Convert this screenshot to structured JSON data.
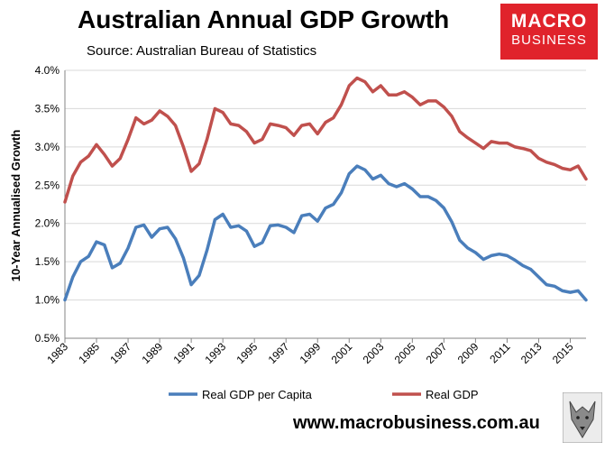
{
  "header": {
    "title": "Australian Annual GDP Growth",
    "subtitle": "Source: Australian Bureau of Statistics"
  },
  "logo": {
    "line1": "MACRO",
    "line2": "BUSINESS"
  },
  "footer": {
    "website": "www.macrobusiness.com.au"
  },
  "chart_data": {
    "type": "line",
    "title": "Australian Annual GDP Growth",
    "subtitle": "Source: Australian Bureau of Statistics",
    "xlabel": "",
    "ylabel": "10-Year Annualised Growth",
    "xlim": [
      1983,
      2016
    ],
    "ylim": [
      0.5,
      4.0
    ],
    "x_ticks": [
      "1983",
      "1985",
      "1987",
      "1989",
      "1991",
      "1993",
      "1995",
      "1997",
      "1999",
      "2001",
      "2003",
      "2005",
      "2007",
      "2009",
      "2011",
      "2013",
      "2015"
    ],
    "y_ticks": [
      "0.5%",
      "1.0%",
      "1.5%",
      "2.0%",
      "2.5%",
      "3.0%",
      "3.5%",
      "4.0%"
    ],
    "grid": "horizontal",
    "legend": "bottom",
    "series": [
      {
        "name": "Real GDP per Capita",
        "color": "#4a7ebb",
        "points": [
          [
            1983,
            1.0
          ],
          [
            1983.5,
            1.3
          ],
          [
            1984,
            1.5
          ],
          [
            1984.5,
            1.57
          ],
          [
            1985,
            1.76
          ],
          [
            1985.5,
            1.72
          ],
          [
            1986,
            1.42
          ],
          [
            1986.5,
            1.48
          ],
          [
            1987,
            1.68
          ],
          [
            1987.5,
            1.95
          ],
          [
            1988,
            1.98
          ],
          [
            1988.5,
            1.82
          ],
          [
            1989,
            1.93
          ],
          [
            1989.5,
            1.95
          ],
          [
            1990,
            1.8
          ],
          [
            1990.5,
            1.55
          ],
          [
            1991,
            1.2
          ],
          [
            1991.5,
            1.32
          ],
          [
            1992,
            1.65
          ],
          [
            1992.5,
            2.05
          ],
          [
            1993,
            2.12
          ],
          [
            1993.5,
            1.95
          ],
          [
            1994,
            1.97
          ],
          [
            1994.5,
            1.9
          ],
          [
            1995,
            1.7
          ],
          [
            1995.5,
            1.75
          ],
          [
            1996,
            1.97
          ],
          [
            1996.5,
            1.98
          ],
          [
            1997,
            1.95
          ],
          [
            1997.5,
            1.88
          ],
          [
            1998,
            2.1
          ],
          [
            1998.5,
            2.12
          ],
          [
            1999,
            2.03
          ],
          [
            1999.5,
            2.2
          ],
          [
            2000,
            2.25
          ],
          [
            2000.5,
            2.4
          ],
          [
            2001,
            2.65
          ],
          [
            2001.5,
            2.75
          ],
          [
            2002,
            2.7
          ],
          [
            2002.5,
            2.58
          ],
          [
            2003,
            2.63
          ],
          [
            2003.5,
            2.52
          ],
          [
            2004,
            2.48
          ],
          [
            2004.5,
            2.52
          ],
          [
            2005,
            2.45
          ],
          [
            2005.5,
            2.35
          ],
          [
            2006,
            2.35
          ],
          [
            2006.5,
            2.3
          ],
          [
            2007,
            2.2
          ],
          [
            2007.5,
            2.02
          ],
          [
            2008,
            1.78
          ],
          [
            2008.5,
            1.68
          ],
          [
            2009,
            1.62
          ],
          [
            2009.5,
            1.53
          ],
          [
            2010,
            1.58
          ],
          [
            2010.5,
            1.6
          ],
          [
            2011,
            1.58
          ],
          [
            2011.5,
            1.52
          ],
          [
            2012,
            1.45
          ],
          [
            2012.5,
            1.4
          ],
          [
            2013,
            1.3
          ],
          [
            2013.5,
            1.2
          ],
          [
            2014,
            1.18
          ],
          [
            2014.5,
            1.12
          ],
          [
            2015,
            1.1
          ],
          [
            2015.5,
            1.12
          ],
          [
            2016,
            1.0
          ]
        ]
      },
      {
        "name": "Real GDP",
        "color": "#c0504d",
        "points": [
          [
            1983,
            2.28
          ],
          [
            1983.5,
            2.62
          ],
          [
            1984,
            2.8
          ],
          [
            1984.5,
            2.88
          ],
          [
            1985,
            3.03
          ],
          [
            1985.5,
            2.9
          ],
          [
            1986,
            2.75
          ],
          [
            1986.5,
            2.85
          ],
          [
            1987,
            3.1
          ],
          [
            1987.5,
            3.38
          ],
          [
            1988,
            3.3
          ],
          [
            1988.5,
            3.35
          ],
          [
            1989,
            3.47
          ],
          [
            1989.5,
            3.4
          ],
          [
            1990,
            3.28
          ],
          [
            1990.5,
            3.0
          ],
          [
            1991,
            2.68
          ],
          [
            1991.5,
            2.78
          ],
          [
            1992,
            3.1
          ],
          [
            1992.5,
            3.5
          ],
          [
            1993,
            3.45
          ],
          [
            1993.5,
            3.3
          ],
          [
            1994,
            3.28
          ],
          [
            1994.5,
            3.2
          ],
          [
            1995,
            3.05
          ],
          [
            1995.5,
            3.1
          ],
          [
            1996,
            3.3
          ],
          [
            1996.5,
            3.28
          ],
          [
            1997,
            3.25
          ],
          [
            1997.5,
            3.15
          ],
          [
            1998,
            3.28
          ],
          [
            1998.5,
            3.3
          ],
          [
            1999,
            3.17
          ],
          [
            1999.5,
            3.32
          ],
          [
            2000,
            3.38
          ],
          [
            2000.5,
            3.55
          ],
          [
            2001,
            3.8
          ],
          [
            2001.5,
            3.9
          ],
          [
            2002,
            3.85
          ],
          [
            2002.5,
            3.72
          ],
          [
            2003,
            3.8
          ],
          [
            2003.5,
            3.68
          ],
          [
            2004,
            3.68
          ],
          [
            2004.5,
            3.72
          ],
          [
            2005,
            3.65
          ],
          [
            2005.5,
            3.55
          ],
          [
            2006,
            3.6
          ],
          [
            2006.5,
            3.6
          ],
          [
            2007,
            3.52
          ],
          [
            2007.5,
            3.4
          ],
          [
            2008,
            3.2
          ],
          [
            2008.5,
            3.12
          ],
          [
            2009,
            3.05
          ],
          [
            2009.5,
            2.98
          ],
          [
            2010,
            3.07
          ],
          [
            2010.5,
            3.05
          ],
          [
            2011,
            3.05
          ],
          [
            2011.5,
            3.0
          ],
          [
            2012,
            2.98
          ],
          [
            2012.5,
            2.95
          ],
          [
            2013,
            2.85
          ],
          [
            2013.5,
            2.8
          ],
          [
            2014,
            2.77
          ],
          [
            2014.5,
            2.72
          ],
          [
            2015,
            2.7
          ],
          [
            2015.5,
            2.75
          ],
          [
            2016,
            2.58
          ]
        ]
      }
    ]
  }
}
